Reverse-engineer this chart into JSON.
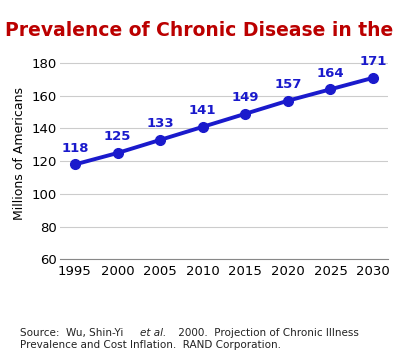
{
  "title": "Prevalence of Chronic Disease in the U.S.",
  "title_color": "#bb0000",
  "ylabel": "Millions of Americans",
  "years": [
    1995,
    2000,
    2005,
    2010,
    2015,
    2020,
    2025,
    2030
  ],
  "values": [
    118,
    125,
    133,
    141,
    149,
    157,
    164,
    171
  ],
  "line_color": "#1a1acc",
  "marker_color": "#1a1acc",
  "ylim": [
    60,
    190
  ],
  "yticks": [
    60,
    80,
    100,
    120,
    140,
    160,
    180
  ],
  "label_color": "#1a1acc",
  "bg_color": "#ffffff",
  "grid_color": "#cccccc",
  "source_pre": "Source:  Wu, Shin-Yi ",
  "source_italic": "et al.",
  "source_post": " 2000.  Projection of Chronic Illness\nPrevalence and Cost Inflation.  RAND Corporation.",
  "source_fontsize": 7.5,
  "tick_fontsize": 9.5,
  "ylabel_fontsize": 9,
  "title_fontsize": 13.5,
  "label_fontsize": 9.5
}
